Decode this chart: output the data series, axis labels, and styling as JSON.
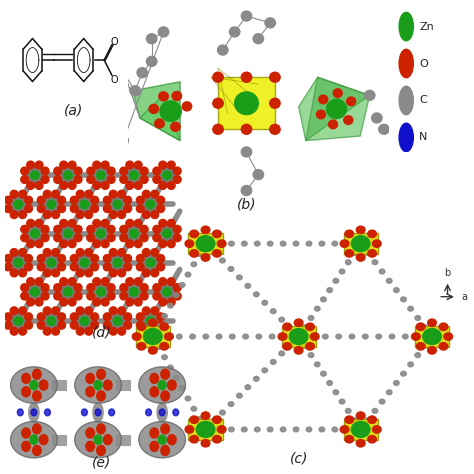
{
  "background_color": "#ffffff",
  "atom_colors": {
    "Zn": "#1a9e1a",
    "O": "#cc2200",
    "C": "#8a8a8a",
    "N": "#1010cc"
  },
  "label_fontsize": 10,
  "label_color": "#222222",
  "panels": {
    "a": {
      "label": "(a)"
    },
    "b": {
      "label": "(b)"
    },
    "c": {
      "label": "(c)"
    },
    "d": {
      "label": "(d)"
    },
    "e": {
      "label": "(e)"
    }
  },
  "legend": {
    "items": [
      "Zn",
      "O",
      "C",
      "N"
    ],
    "colors": [
      "#1a9e1a",
      "#cc2200",
      "#8a8a8a",
      "#1010cc"
    ]
  }
}
